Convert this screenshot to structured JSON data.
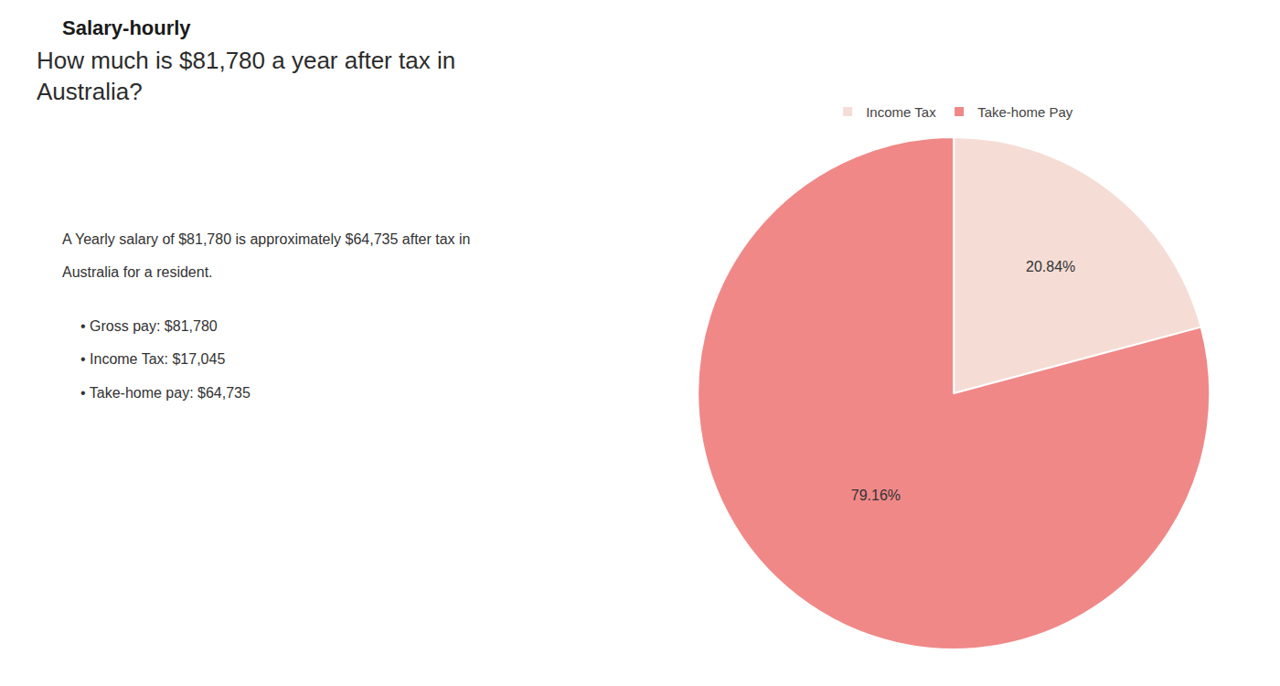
{
  "chart_data": {
    "type": "pie",
    "title": "How much is $81,780 a year after tax in\nAustralia?",
    "categories": [
      "Income Tax",
      "Take-home Pay"
    ],
    "values": [
      20.84,
      79.16
    ],
    "value_labels": [
      "20.84%",
      "79.16%"
    ],
    "colors": [
      "#f5ddd5",
      "#f08888"
    ],
    "data_labels": true,
    "legend": "top",
    "annotations": [
      "Salary-hourly",
      "A Yearly salary of $81,780 is approximately $64,735 after tax in",
      "Australia for a resident.",
      "• Gross pay: $81,780",
      "• Income Tax: $17,045",
      "• Take-home pay: $64,735"
    ]
  }
}
